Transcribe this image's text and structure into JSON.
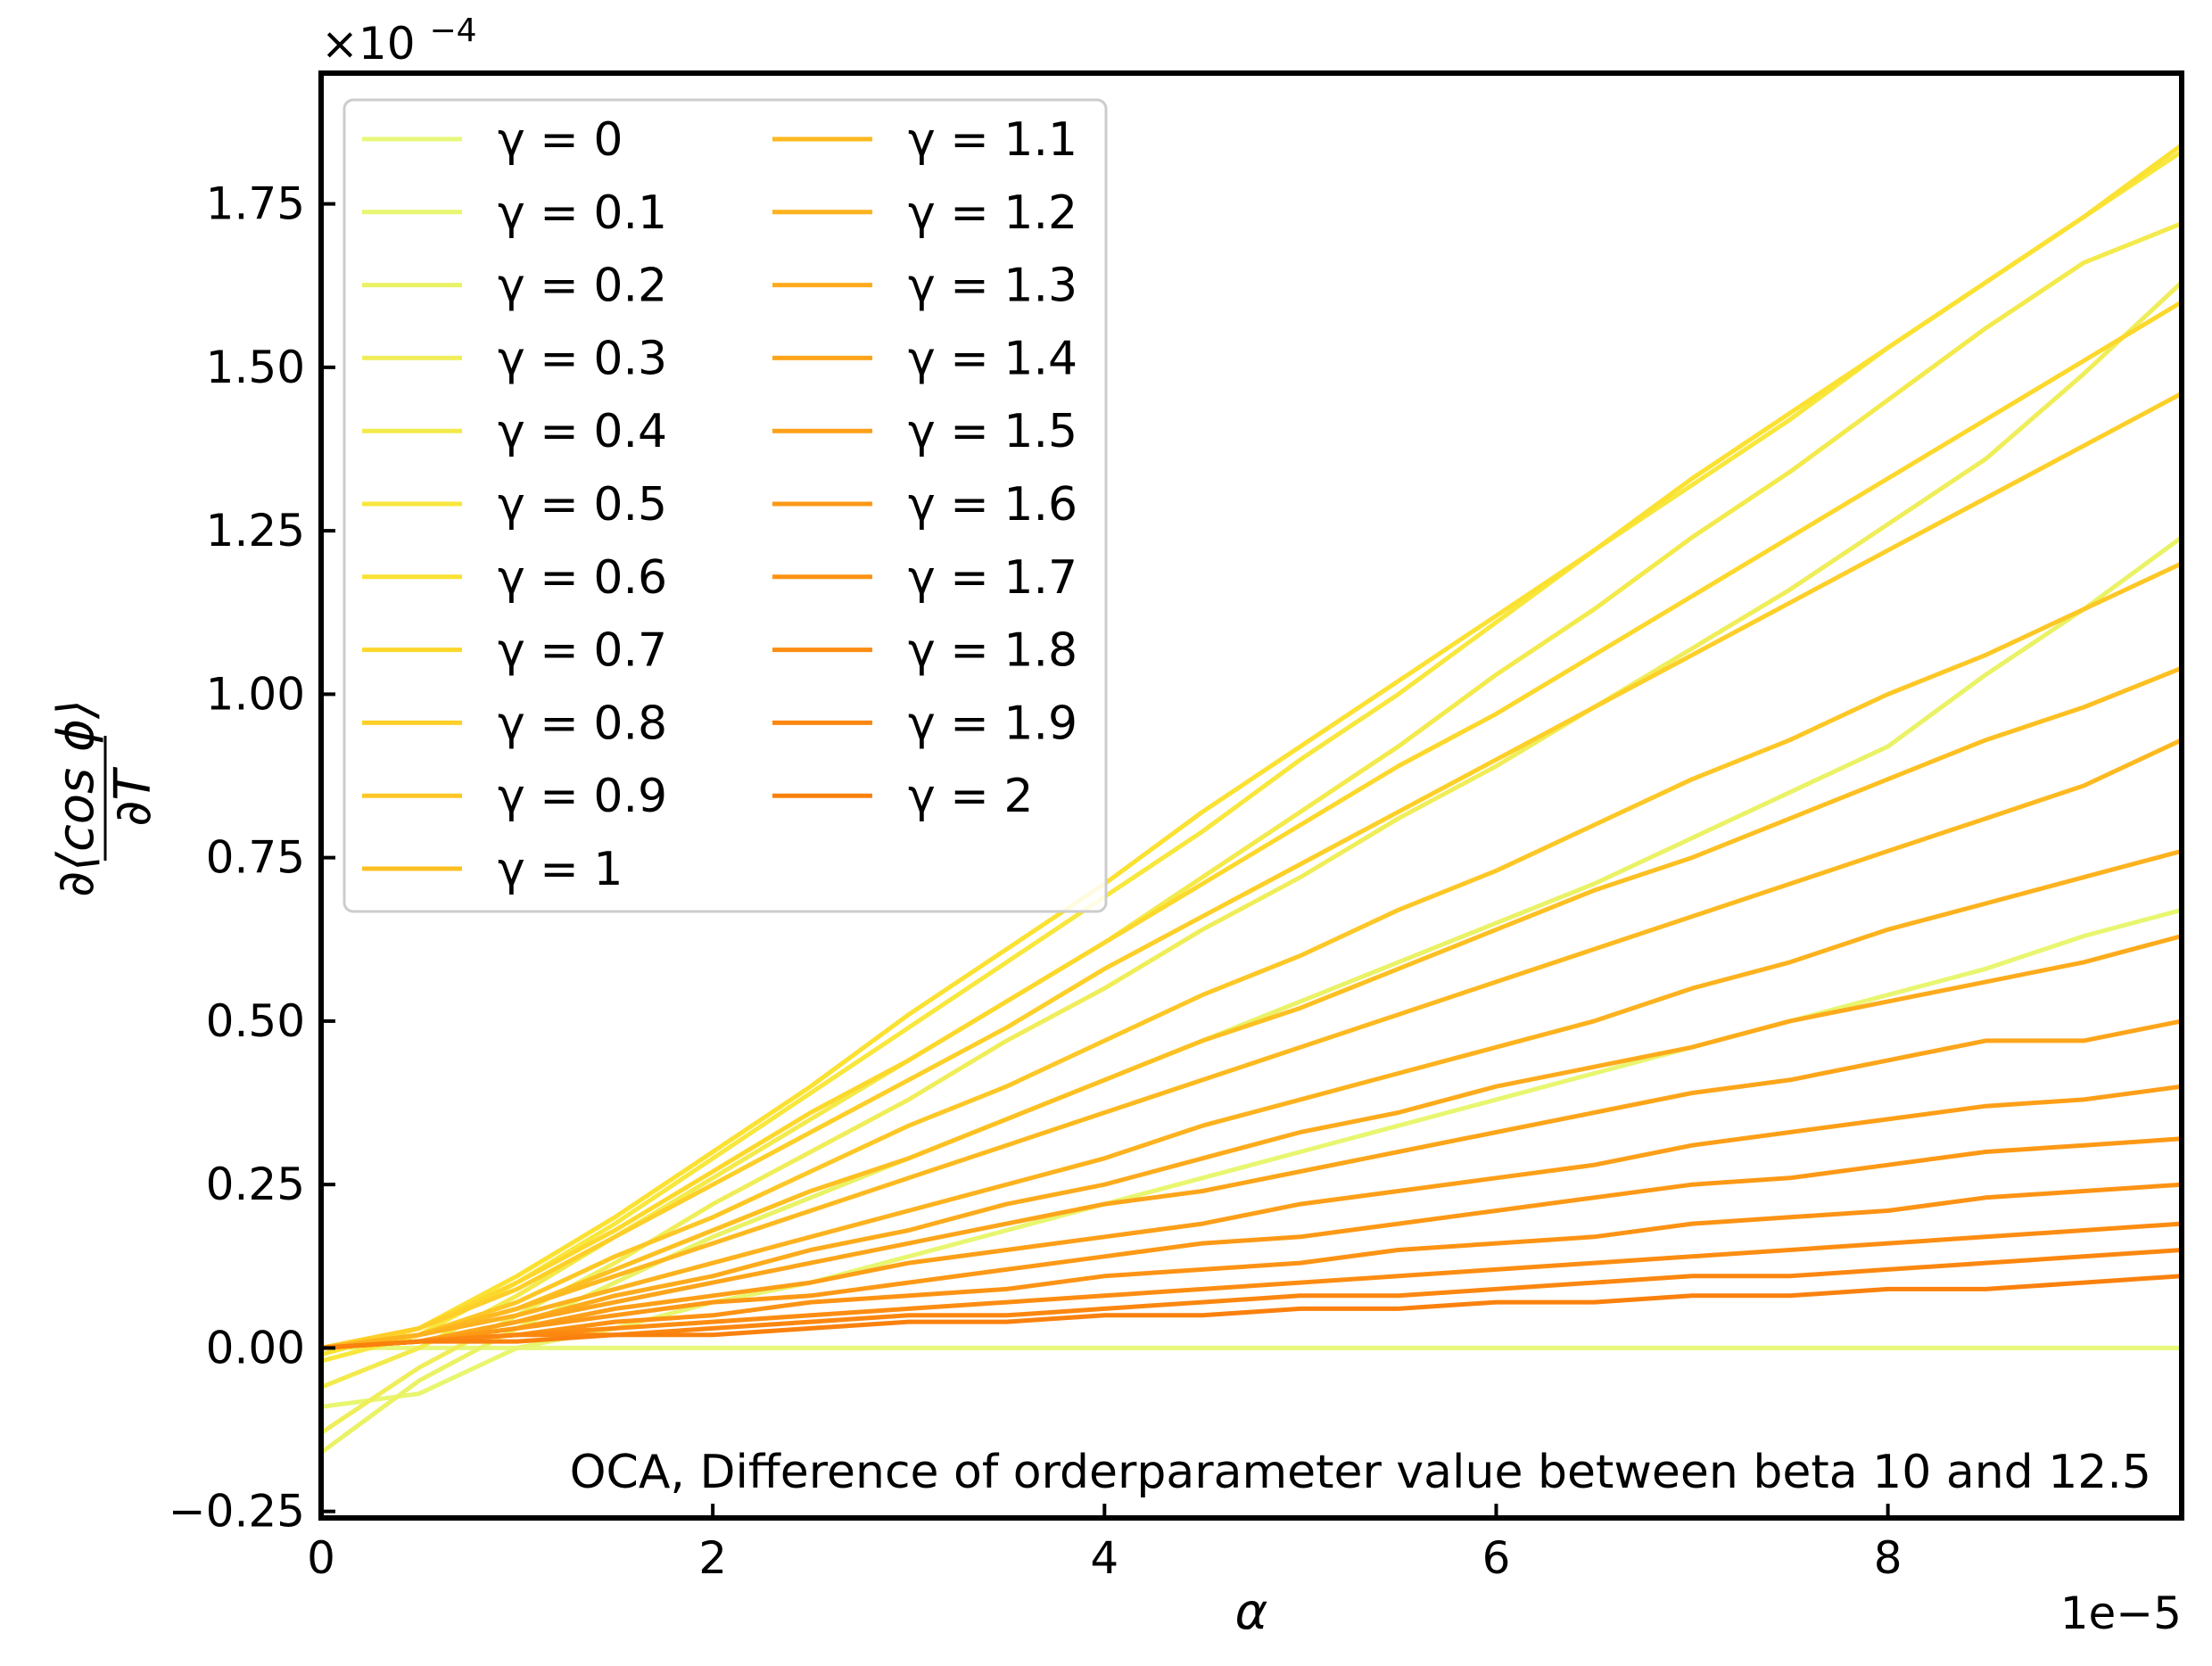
{
  "chart_data": {
    "type": "line",
    "annotation": "OCA, Difference of orderparameter value between beta 10 and 12.5",
    "xlabel": "α",
    "ylabel_numerator": "∂⟨cos ϕ⟩",
    "ylabel_denominator": "∂T",
    "x_offset_label": "1e−5",
    "y_offset_label": "×10",
    "y_offset_exponent": "−4",
    "xlim": [
      0,
      9.5
    ],
    "ylim": [
      -0.26,
      1.95
    ],
    "x_unit_scale": "1e-5",
    "y_unit_scale": "1e-4",
    "x_ticks": [
      0,
      2,
      4,
      6,
      8
    ],
    "x_tick_labels": [
      "0",
      "2",
      "4",
      "6",
      "8"
    ],
    "y_ticks": [
      -0.25,
      0,
      0.25,
      0.5,
      0.75,
      1.0,
      1.25,
      1.5,
      1.75
    ],
    "y_tick_labels": [
      "−0.25",
      "0.00",
      "0.25",
      "0.50",
      "0.75",
      "1.00",
      "1.25",
      "1.50",
      "1.75"
    ],
    "grid": false,
    "legend_position": "top-left",
    "legend_columns": 2,
    "x": [
      0,
      0.5,
      1,
      1.5,
      2,
      2.5,
      3,
      3.5,
      4,
      4.5,
      5,
      5.5,
      6,
      6.5,
      7,
      7.5,
      8,
      8.5,
      9,
      9.5
    ],
    "series": [
      {
        "name": "γ = 0",
        "color": "#e8f87a",
        "values": [
          0,
          0,
          0,
          0,
          0,
          0,
          0,
          0,
          0,
          0,
          0,
          0,
          0,
          0,
          0,
          0,
          0,
          0,
          0,
          0
        ]
      },
      {
        "name": "γ = 0.1",
        "color": "#e8f670",
        "values": [
          -0.09,
          -0.07,
          0.0,
          0.03,
          0.07,
          0.1,
          0.14,
          0.18,
          0.22,
          0.26,
          0.3,
          0.34,
          0.38,
          0.42,
          0.46,
          0.5,
          0.54,
          0.58,
          0.63,
          0.67
        ]
      },
      {
        "name": "γ = 0.2",
        "color": "#eaf266",
        "values": [
          -0.16,
          -0.05,
          0.03,
          0.1,
          0.17,
          0.23,
          0.29,
          0.35,
          0.41,
          0.47,
          0.53,
          0.59,
          0.65,
          0.71,
          0.78,
          0.85,
          0.92,
          1.03,
          1.13,
          1.24
        ]
      },
      {
        "name": "γ = 0.3",
        "color": "#efee5a",
        "values": [
          -0.13,
          -0.03,
          0.05,
          0.13,
          0.22,
          0.3,
          0.38,
          0.47,
          0.55,
          0.64,
          0.72,
          0.81,
          0.89,
          0.98,
          1.07,
          1.16,
          1.26,
          1.36,
          1.49,
          1.63
        ]
      },
      {
        "name": "γ = 0.4",
        "color": "#f3ea4c",
        "values": [
          -0.06,
          0.0,
          0.08,
          0.17,
          0.26,
          0.35,
          0.44,
          0.53,
          0.62,
          0.72,
          0.82,
          0.92,
          1.03,
          1.13,
          1.24,
          1.34,
          1.45,
          1.56,
          1.66,
          1.72
        ]
      },
      {
        "name": "γ = 0.5",
        "color": "#f8e73c",
        "values": [
          -0.02,
          0.02,
          0.1,
          0.19,
          0.29,
          0.39,
          0.49,
          0.59,
          0.69,
          0.79,
          0.9,
          1.0,
          1.11,
          1.22,
          1.32,
          1.42,
          1.53,
          1.63,
          1.73,
          1.83
        ]
      },
      {
        "name": "γ = 0.6",
        "color": "#fbe132",
        "values": [
          -0.01,
          0.03,
          0.11,
          0.2,
          0.3,
          0.4,
          0.51,
          0.61,
          0.71,
          0.82,
          0.92,
          1.02,
          1.12,
          1.22,
          1.33,
          1.43,
          1.53,
          1.63,
          1.73,
          1.84
        ]
      },
      {
        "name": "γ = 0.7",
        "color": "#fdd82c",
        "values": [
          0.0,
          0.03,
          0.1,
          0.18,
          0.27,
          0.36,
          0.44,
          0.53,
          0.62,
          0.71,
          0.8,
          0.89,
          0.97,
          1.06,
          1.15,
          1.24,
          1.33,
          1.42,
          1.51,
          1.6
        ]
      },
      {
        "name": "γ = 0.8",
        "color": "#fdcf28",
        "values": [
          0.0,
          0.03,
          0.09,
          0.17,
          0.25,
          0.33,
          0.41,
          0.49,
          0.58,
          0.66,
          0.74,
          0.82,
          0.9,
          0.98,
          1.06,
          1.14,
          1.22,
          1.3,
          1.38,
          1.46
        ]
      },
      {
        "name": "γ = 0.9",
        "color": "#fdc726",
        "values": [
          0.0,
          0.02,
          0.07,
          0.14,
          0.2,
          0.27,
          0.34,
          0.4,
          0.47,
          0.54,
          0.6,
          0.67,
          0.73,
          0.8,
          0.87,
          0.93,
          1.0,
          1.06,
          1.13,
          1.2
        ]
      },
      {
        "name": "γ = 1",
        "color": "#fdc022",
        "values": [
          0.0,
          0.02,
          0.06,
          0.12,
          0.18,
          0.24,
          0.29,
          0.35,
          0.41,
          0.47,
          0.52,
          0.58,
          0.64,
          0.7,
          0.75,
          0.81,
          0.87,
          0.93,
          0.98,
          1.04
        ]
      },
      {
        "name": "γ = 1.1",
        "color": "#fdb920",
        "values": [
          0.0,
          0.02,
          0.06,
          0.11,
          0.16,
          0.21,
          0.26,
          0.31,
          0.36,
          0.41,
          0.46,
          0.51,
          0.56,
          0.61,
          0.66,
          0.71,
          0.76,
          0.81,
          0.86,
          0.93
        ]
      },
      {
        "name": "γ = 1.2",
        "color": "#fdb21e",
        "values": [
          0.0,
          0.02,
          0.05,
          0.09,
          0.13,
          0.17,
          0.21,
          0.25,
          0.29,
          0.34,
          0.38,
          0.42,
          0.46,
          0.5,
          0.55,
          0.59,
          0.64,
          0.68,
          0.72,
          0.76
        ]
      },
      {
        "name": "γ = 1.3",
        "color": "#fdab1c",
        "values": [
          0.0,
          0.01,
          0.04,
          0.08,
          0.11,
          0.15,
          0.18,
          0.22,
          0.25,
          0.29,
          0.33,
          0.36,
          0.4,
          0.43,
          0.46,
          0.5,
          0.53,
          0.56,
          0.59,
          0.63
        ]
      },
      {
        "name": "γ = 1.4",
        "color": "#fda51a",
        "values": [
          0.0,
          0.01,
          0.04,
          0.07,
          0.1,
          0.13,
          0.16,
          0.19,
          0.22,
          0.24,
          0.27,
          0.3,
          0.33,
          0.36,
          0.39,
          0.41,
          0.44,
          0.47,
          0.47,
          0.5
        ]
      },
      {
        "name": "γ = 1.5",
        "color": "#fd9f18",
        "values": [
          0.0,
          0.01,
          0.03,
          0.06,
          0.08,
          0.1,
          0.13,
          0.15,
          0.17,
          0.19,
          0.22,
          0.24,
          0.26,
          0.28,
          0.31,
          0.33,
          0.35,
          0.37,
          0.38,
          0.4
        ]
      },
      {
        "name": "γ = 1.6",
        "color": "#fd9916",
        "values": [
          0.0,
          0.01,
          0.03,
          0.05,
          0.07,
          0.08,
          0.1,
          0.12,
          0.14,
          0.16,
          0.17,
          0.19,
          0.21,
          0.23,
          0.25,
          0.26,
          0.28,
          0.3,
          0.31,
          0.32
        ]
      },
      {
        "name": "γ = 1.7",
        "color": "#fd9314",
        "values": [
          0.0,
          0.01,
          0.02,
          0.04,
          0.05,
          0.07,
          0.08,
          0.09,
          0.11,
          0.12,
          0.13,
          0.15,
          0.16,
          0.17,
          0.19,
          0.2,
          0.21,
          0.23,
          0.24,
          0.25
        ]
      },
      {
        "name": "γ = 1.8",
        "color": "#fc8d12",
        "values": [
          0.0,
          0.01,
          0.02,
          0.03,
          0.04,
          0.05,
          0.06,
          0.07,
          0.08,
          0.09,
          0.1,
          0.11,
          0.12,
          0.13,
          0.14,
          0.15,
          0.16,
          0.17,
          0.18,
          0.19
        ]
      },
      {
        "name": "γ = 1.9",
        "color": "#fb8710",
        "values": [
          0.0,
          0.01,
          0.02,
          0.02,
          0.03,
          0.04,
          0.05,
          0.05,
          0.06,
          0.07,
          0.08,
          0.08,
          0.09,
          0.1,
          0.11,
          0.11,
          0.12,
          0.13,
          0.14,
          0.15
        ]
      },
      {
        "name": "γ = 2",
        "color": "#fa810e",
        "values": [
          0.0,
          0.01,
          0.01,
          0.02,
          0.02,
          0.03,
          0.04,
          0.04,
          0.05,
          0.05,
          0.06,
          0.06,
          0.07,
          0.07,
          0.08,
          0.08,
          0.09,
          0.09,
          0.1,
          0.11
        ]
      }
    ]
  }
}
